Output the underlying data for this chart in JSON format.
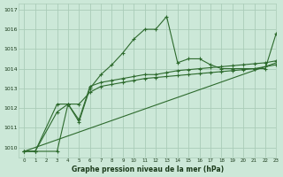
{
  "bg_color": "#cce8d8",
  "grid_color": "#aaccb8",
  "line_color": "#2d6a2d",
  "title": "Graphe pression niveau de la mer (hPa)",
  "xlim": [
    -0.5,
    23
  ],
  "ylim": [
    1009.5,
    1017.3
  ],
  "yticks": [
    1010,
    1011,
    1012,
    1013,
    1014,
    1015,
    1016,
    1017
  ],
  "xticks": [
    0,
    1,
    2,
    3,
    4,
    5,
    6,
    7,
    8,
    9,
    10,
    11,
    12,
    13,
    14,
    15,
    16,
    17,
    18,
    19,
    20,
    21,
    22,
    23
  ],
  "series1_x": [
    0,
    1,
    3,
    4,
    5,
    6,
    7,
    8,
    9,
    10,
    11,
    12,
    13,
    14,
    15,
    16,
    17,
    18,
    19,
    20,
    21,
    22,
    23
  ],
  "series1_y": [
    1009.8,
    1009.8,
    1011.8,
    1012.2,
    1011.3,
    1013.0,
    1013.7,
    1014.2,
    1014.8,
    1015.5,
    1016.0,
    1016.0,
    1016.65,
    1014.3,
    1014.5,
    1014.5,
    1014.2,
    1014.0,
    1014.0,
    1014.0,
    1014.0,
    1014.0,
    1015.8
  ],
  "series2_x": [
    0,
    1,
    3,
    4,
    5,
    6,
    7,
    8,
    9,
    10,
    11,
    12,
    13,
    14,
    15,
    16,
    17,
    18,
    19,
    20,
    21,
    22,
    23
  ],
  "series2_y": [
    1009.8,
    1009.8,
    1012.2,
    1012.2,
    1011.4,
    1013.1,
    1013.3,
    1013.4,
    1013.5,
    1013.6,
    1013.7,
    1013.7,
    1013.8,
    1013.9,
    1013.95,
    1014.0,
    1014.05,
    1014.1,
    1014.15,
    1014.2,
    1014.25,
    1014.3,
    1014.4
  ],
  "series3_x": [
    0,
    1,
    3,
    4,
    5,
    6,
    7,
    8,
    9,
    10,
    11,
    12,
    13,
    14,
    15,
    16,
    17,
    18,
    19,
    20,
    21,
    22,
    23
  ],
  "series3_y": [
    1009.8,
    1009.8,
    1009.8,
    1012.2,
    1012.2,
    1012.8,
    1013.1,
    1013.2,
    1013.3,
    1013.4,
    1013.5,
    1013.55,
    1013.6,
    1013.65,
    1013.7,
    1013.75,
    1013.8,
    1013.85,
    1013.9,
    1013.95,
    1014.0,
    1014.1,
    1014.2
  ],
  "series4_x": [
    0,
    23
  ],
  "series4_y": [
    1009.8,
    1014.3
  ]
}
